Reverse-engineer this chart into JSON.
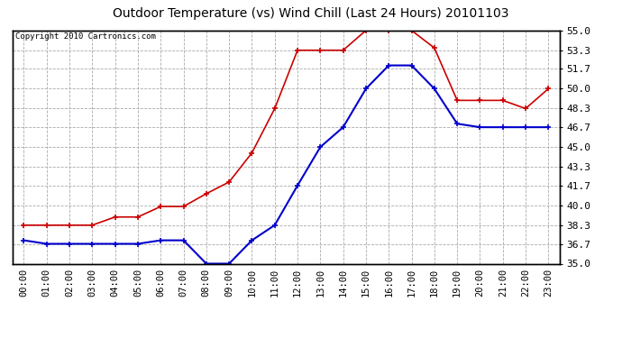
{
  "title": "Outdoor Temperature (vs) Wind Chill (Last 24 Hours) 20101103",
  "copyright": "Copyright 2010 Cartronics.com",
  "hours": [
    0,
    1,
    2,
    3,
    4,
    5,
    6,
    7,
    8,
    9,
    10,
    11,
    12,
    13,
    14,
    15,
    16,
    17,
    18,
    19,
    20,
    21,
    22,
    23
  ],
  "temp": [
    38.3,
    38.3,
    38.3,
    38.3,
    39.0,
    39.0,
    39.9,
    39.9,
    41.0,
    42.0,
    44.5,
    48.3,
    53.3,
    53.3,
    53.3,
    55.0,
    55.0,
    55.0,
    53.5,
    49.0,
    49.0,
    49.0,
    48.3,
    50.0
  ],
  "windchill": [
    37.0,
    36.7,
    36.7,
    36.7,
    36.7,
    36.7,
    37.0,
    37.0,
    35.0,
    35.0,
    37.0,
    38.3,
    41.7,
    45.0,
    46.7,
    50.0,
    52.0,
    52.0,
    50.0,
    47.0,
    46.7,
    46.7,
    46.7,
    46.7
  ],
  "temp_color": "#cc0000",
  "windchill_color": "#0000cc",
  "bg_color": "#ffffff",
  "plot_bg_color": "#ffffff",
  "grid_color": "#aaaaaa",
  "ylim": [
    35.0,
    55.0
  ],
  "yticks": [
    35.0,
    36.7,
    38.3,
    40.0,
    41.7,
    43.3,
    45.0,
    46.7,
    48.3,
    50.0,
    51.7,
    53.3,
    55.0
  ],
  "ytick_labels": [
    "35.0",
    "36.7",
    "38.3",
    "40.0",
    "41.7",
    "43.3",
    "45.0",
    "46.7",
    "48.3",
    "50.0",
    "51.7",
    "53.3",
    "55.0"
  ]
}
